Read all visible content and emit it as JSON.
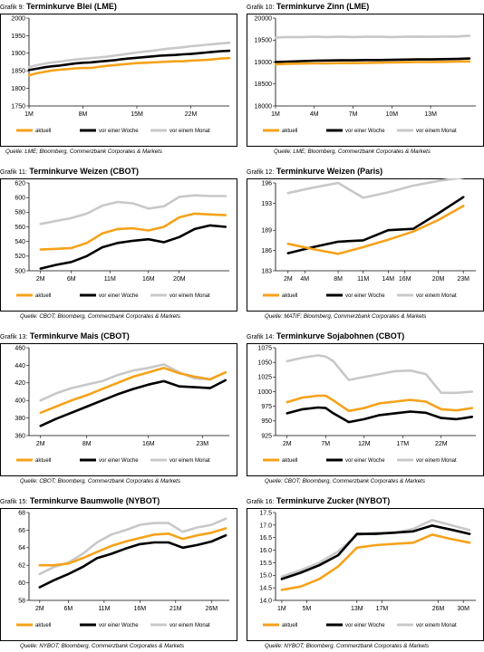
{
  "charts": [
    {
      "label": "Grafik 9:",
      "title": "Terminkurve Blei (LME)",
      "source": "Quelle: LME; Bloomberg, Commerzbank Corporates & Markets",
      "chart_data": {
        "type": "line",
        "title": "Terminkurve Blei (LME)",
        "x": [
          1,
          2,
          3,
          4,
          5,
          6,
          7,
          8,
          9,
          10,
          11,
          12,
          13,
          14,
          15,
          16,
          17,
          18,
          19,
          20,
          21,
          22,
          23,
          24,
          25,
          26,
          27
        ],
        "xticks": [
          1,
          8,
          15,
          22
        ],
        "xtick_labels": [
          "1M",
          "8M",
          "15M",
          "22M"
        ],
        "xlim": [
          1,
          27
        ],
        "ylim": [
          1750,
          2000
        ],
        "yticks": [
          1750,
          1800,
          1850,
          1900,
          1950,
          2000
        ],
        "series": [
          {
            "name": "aktuell",
            "color": "#f5a21a",
            "values": [
              1837,
              1843,
              1847,
              1851,
              1853,
              1855,
              1857,
              1858,
              1858,
              1861,
              1864,
              1866,
              1868,
              1870,
              1872,
              1873,
              1874,
              1875,
              1876,
              1877,
              1877,
              1879,
              1880,
              1881,
              1883,
              1885,
              1886
            ]
          },
          {
            "name": "vor einer Woche",
            "color": "#000000",
            "values": [
              1852,
              1856,
              1860,
              1863,
              1865,
              1868,
              1871,
              1873,
              1874,
              1876,
              1878,
              1880,
              1883,
              1885,
              1887,
              1889,
              1891,
              1893,
              1894,
              1895,
              1897,
              1898,
              1900,
              1902,
              1904,
              1906,
              1907
            ]
          },
          {
            "name": "vor einem Monat",
            "color": "#c8c8c8",
            "values": [
              1860,
              1866,
              1870,
              1874,
              1876,
              1879,
              1882,
              1884,
              1886,
              1888,
              1890,
              1893,
              1896,
              1899,
              1902,
              1905,
              1907,
              1910,
              1913,
              1915,
              1917,
              1920,
              1922,
              1924,
              1926,
              1928,
              1930
            ]
          }
        ]
      }
    },
    {
      "label": "Grafik 10:",
      "title": "Terminkurve Zinn (LME)",
      "source": "Quelle: LME; Bloomberg, Commerzbank Corporates & Markets",
      "chart_data": {
        "type": "line",
        "title": "Terminkurve Zinn (LME)",
        "x": [
          1,
          2,
          3,
          4,
          5,
          6,
          7,
          8,
          9,
          10,
          11,
          12,
          13,
          14,
          15,
          16
        ],
        "xticks": [
          1,
          4,
          7,
          10,
          13
        ],
        "xtick_labels": [
          "1M",
          "4M",
          "7M",
          "10M",
          "13M"
        ],
        "xlim": [
          1,
          16.5
        ],
        "ylim": [
          18000,
          20000
        ],
        "yticks": [
          18000,
          18500,
          19000,
          19500,
          20000
        ],
        "series": [
          {
            "name": "aktuell",
            "color": "#f5a21a",
            "values": [
              18950,
              18960,
              18965,
              18970,
              18970,
              18975,
              18975,
              18980,
              18985,
              18990,
              18995,
              19000,
              19000,
              19005,
              19010,
              19015
            ]
          },
          {
            "name": "vor einer Woche",
            "color": "#000000",
            "values": [
              19000,
              19010,
              19020,
              19030,
              19035,
              19040,
              19040,
              19045,
              19045,
              19050,
              19055,
              19060,
              19060,
              19065,
              19070,
              19080
            ]
          },
          {
            "name": "vor einem Monat",
            "color": "#c8c8c8",
            "values": [
              19560,
              19570,
              19570,
              19575,
              19570,
              19575,
              19570,
              19575,
              19575,
              19570,
              19575,
              19580,
              19575,
              19580,
              19580,
              19600
            ]
          }
        ]
      }
    },
    {
      "label": "Grafik 11:",
      "title": "Terminkurve Weizen (CBOT)",
      "source": "Quelle: CBOT; Bloomberg, Commerzbank Corporates & Markets",
      "chart_data": {
        "type": "line",
        "title": "Terminkurve Weizen (CBOT)",
        "x": [
          2,
          4,
          6,
          8,
          10,
          12,
          14,
          16,
          18,
          20,
          22,
          24,
          26
        ],
        "xticks": [
          2,
          6,
          11,
          16,
          20
        ],
        "xtick_labels": [
          "2M",
          "6M",
          "11M",
          "16M",
          "20M"
        ],
        "xlim": [
          0.5,
          26.5
        ],
        "ylim": [
          500,
          620
        ],
        "yticks": [
          500,
          520,
          540,
          560,
          580,
          600,
          620
        ],
        "series": [
          {
            "name": "aktuell",
            "color": "#f5a21a",
            "values": [
              529,
              530,
              531,
              538,
              551,
              557,
              558,
              555,
              560,
              573,
              578,
              577,
              576
            ]
          },
          {
            "name": "vor einer Woche",
            "color": "#000000",
            "values": [
              503,
              508,
              512,
              520,
              532,
              538,
              541,
              543,
              539,
              546,
              557,
              562,
              560
            ]
          },
          {
            "name": "vor einem Monat",
            "color": "#c8c8c8",
            "values": [
              564,
              568,
              572,
              578,
              589,
              594,
              592,
              585,
              588,
              601,
              603,
              602,
              602
            ]
          }
        ]
      }
    },
    {
      "label": "Grafik 12:",
      "title": "Terminkurve Weizen (Paris)",
      "source": "Quelle: MATIF; Bloomberg, Commerzbank Corporates & Markets",
      "chart_data": {
        "type": "line",
        "title": "Terminkurve Weizen (Paris)",
        "x": [
          2,
          5,
          8,
          11,
          14,
          17,
          20,
          23
        ],
        "xticks": [
          2,
          4,
          8,
          11,
          14,
          16,
          20,
          23
        ],
        "xtick_labels": [
          "2M",
          "4M",
          "8M",
          "11M",
          "14M",
          "16M",
          "20M",
          "23M"
        ],
        "xlim": [
          0.5,
          24.5
        ],
        "ylim": [
          183,
          196
        ],
        "yticks": [
          183,
          186,
          189,
          193,
          196
        ],
        "series": [
          {
            "name": "aktuell",
            "color": "#f5a21a",
            "values": [
              187.0,
              186.2,
              185.5,
              186.5,
              187.6,
              188.8,
              190.5,
              192.6
            ]
          },
          {
            "name": "vor einer Woche",
            "color": "#000000",
            "values": [
              185.6,
              186.5,
              187.3,
              187.5,
              189.0,
              189.2,
              191.5,
              193.9
            ]
          },
          {
            "name": "vor einem Monat",
            "color": "#c8c8c8",
            "values": [
              194.5,
              195.3,
              196.0,
              193.8,
              194.6,
              195.6,
              196.3,
              196.8
            ]
          }
        ]
      }
    },
    {
      "label": "Grafik 13:",
      "title": "Terminkurve Mais (CBOT)",
      "source": "Quelle: CBOT; Bloomberg, Commerzbank Corporates & Markets",
      "chart_data": {
        "type": "line",
        "title": "Terminkurve Mais (CBOT)",
        "x": [
          2,
          4,
          6,
          8,
          10,
          12,
          14,
          16,
          18,
          20,
          22,
          24,
          26
        ],
        "xticks": [
          2,
          8,
          16,
          23
        ],
        "xtick_labels": [
          "2M",
          "8M",
          "16M",
          "23M"
        ],
        "xlim": [
          0.5,
          26.5
        ],
        "ylim": [
          360,
          460
        ],
        "yticks": [
          360,
          380,
          400,
          420,
          440,
          460
        ],
        "series": [
          {
            "name": "aktuell",
            "color": "#f5a21a",
            "values": [
              386,
              393,
              400,
              406,
              413,
              420,
              427,
              432,
              437,
              431,
              427,
              424,
              432
            ]
          },
          {
            "name": "vor einer Woche",
            "color": "#000000",
            "values": [
              371,
              379,
              386,
              393,
              400,
              407,
              413,
              418,
              422,
              416,
              415,
              414,
              423
            ]
          },
          {
            "name": "vor einem Monat",
            "color": "#c8c8c8",
            "values": [
              400,
              408,
              414,
              418,
              422,
              429,
              434,
              437,
              441,
              432,
              425,
              424,
              432
            ]
          }
        ]
      }
    },
    {
      "label": "Grafik 14:",
      "title": "Terminkurve Sojabohnen (CBOT)",
      "source": "Quelle: CBOT; Bloomberg, Commerzbank Corporates & Markets",
      "chart_data": {
        "type": "line",
        "title": "Terminkurve Sojabohnen (CBOT)",
        "x": [
          2,
          4,
          6,
          7,
          8,
          10,
          12,
          14,
          16,
          18,
          20,
          22,
          24,
          26
        ],
        "xticks": [
          2,
          7,
          12,
          17,
          22
        ],
        "xtick_labels": [
          "2M",
          "7M",
          "12M",
          "17M",
          "22M"
        ],
        "xlim": [
          0.5,
          26.5
        ],
        "ylim": [
          925,
          1075
        ],
        "yticks": [
          925,
          950,
          975,
          1000,
          1025,
          1050,
          1075
        ],
        "series": [
          {
            "name": "aktuell",
            "color": "#f5a21a",
            "values": [
              982,
              990,
              993,
              993,
              985,
              967,
              972,
              980,
              983,
              986,
              983,
              970,
              968,
              972
            ]
          },
          {
            "name": "vor einer Woche",
            "color": "#000000",
            "values": [
              963,
              970,
              973,
              972,
              963,
              948,
              953,
              960,
              963,
              966,
              964,
              955,
              953,
              957
            ]
          },
          {
            "name": "vor einem Monat",
            "color": "#c8c8c8",
            "values": [
              1052,
              1058,
              1062,
              1060,
              1052,
              1020,
              1025,
              1030,
              1035,
              1036,
              1030,
              998,
              998,
              1000
            ]
          }
        ]
      }
    },
    {
      "label": "Grafik 15:",
      "title": "Terminkurve Baumwolle (NYBOT)",
      "source": "Quelle: NYBOT; Bloomberg, Commerzbank Corporates & Markets",
      "chart_data": {
        "type": "line",
        "title": "Terminkurve Baumwolle (NYBOT)",
        "x": [
          2,
          4,
          6,
          8,
          10,
          12,
          14,
          16,
          18,
          20,
          22,
          24,
          26,
          28
        ],
        "xticks": [
          2,
          6,
          11,
          16,
          21,
          26
        ],
        "xtick_labels": [
          "2M",
          "6M",
          "11M",
          "16M",
          "21M",
          "26M"
        ],
        "xlim": [
          0.5,
          28.5
        ],
        "ylim": [
          58,
          68
        ],
        "yticks": [
          58,
          60,
          62,
          64,
          66,
          68
        ],
        "series": [
          {
            "name": "aktuell",
            "color": "#f5a21a",
            "values": [
              62.0,
              62.0,
              62.2,
              62.8,
              63.5,
              64.2,
              64.7,
              65.1,
              65.5,
              65.6,
              65.0,
              65.4,
              65.7,
              66.2
            ]
          },
          {
            "name": "vor einer Woche",
            "color": "#000000",
            "values": [
              59.5,
              60.3,
              61.0,
              61.8,
              62.8,
              63.3,
              63.9,
              64.4,
              64.6,
              64.6,
              64.0,
              64.3,
              64.7,
              65.4
            ]
          },
          {
            "name": "vor einem Monat",
            "color": "#c8c8c8",
            "values": [
              61.0,
              61.8,
              62.3,
              63.3,
              64.6,
              65.5,
              66.0,
              66.6,
              66.8,
              66.8,
              65.8,
              66.3,
              66.6,
              67.3
            ]
          }
        ]
      }
    },
    {
      "label": "Grafik 16:",
      "title": "Terminkurve Zucker (NYBOT)",
      "source": "Quelle: NYBOT; Bloomberg, Commerzbank Corporates & Markets",
      "chart_data": {
        "type": "line",
        "title": "Terminkurve Zucker (NYBOT)",
        "x": [
          1,
          4,
          7,
          10,
          13,
          16,
          19,
          22,
          25,
          28,
          31
        ],
        "xticks": [
          1,
          5,
          13,
          17,
          26,
          30
        ],
        "xtick_labels": [
          "1M",
          "5M",
          "13M",
          "17M",
          "26M",
          "30M"
        ],
        "xlim": [
          0,
          32
        ],
        "ylim": [
          14.0,
          17.5
        ],
        "yticks": [
          14.0,
          14.5,
          15.0,
          15.5,
          16.0,
          16.5,
          17.0,
          17.5
        ],
        "series": [
          {
            "name": "aktuell",
            "color": "#f5a21a",
            "values": [
              14.42,
              14.55,
              14.85,
              15.35,
              16.1,
              16.2,
              16.25,
              16.3,
              16.62,
              16.45,
              16.3
            ]
          },
          {
            "name": "vor einer Woche",
            "color": "#000000",
            "values": [
              14.85,
              15.1,
              15.4,
              15.8,
              16.65,
              16.65,
              16.7,
              16.75,
              16.98,
              16.82,
              16.65
            ]
          },
          {
            "name": "vor einem Monat",
            "color": "#c8c8c8",
            "values": [
              14.95,
              15.2,
              15.5,
              15.95,
              16.6,
              16.7,
              16.68,
              16.85,
              17.2,
              17.0,
              16.8
            ]
          }
        ]
      }
    }
  ]
}
